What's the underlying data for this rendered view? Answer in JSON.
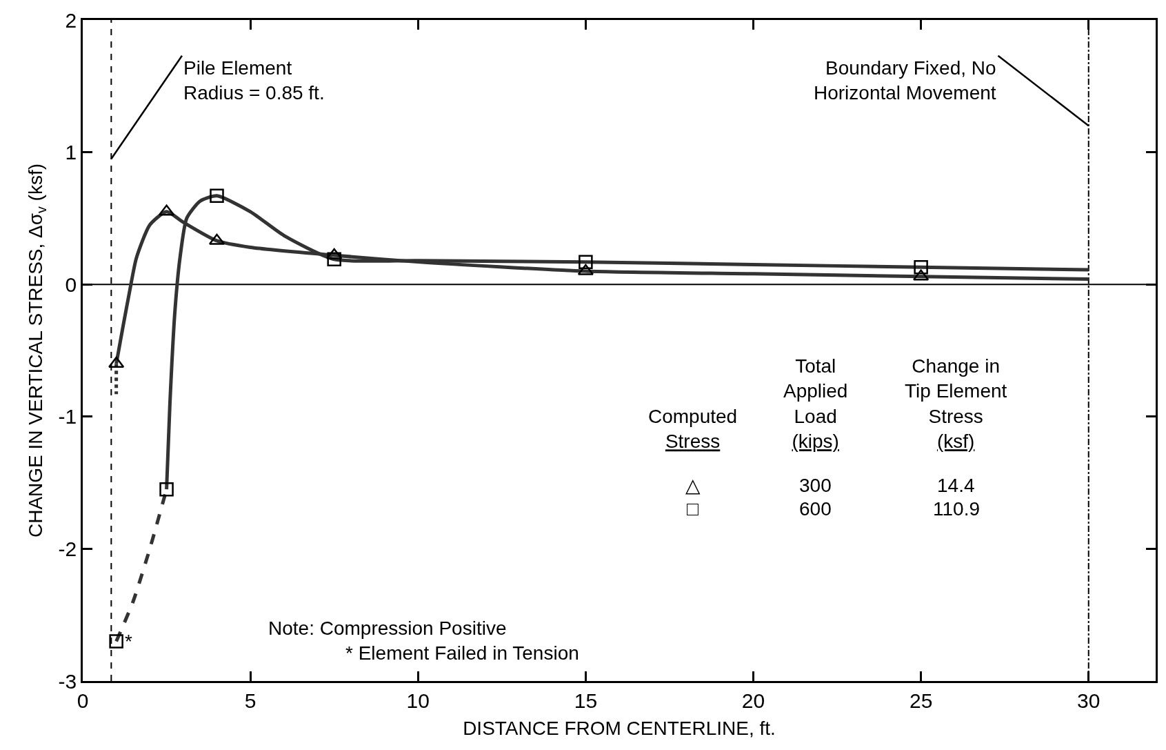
{
  "chart_data": {
    "type": "line",
    "xlabel": "DISTANCE FROM CENTERLINE, ft.",
    "ylabel": "CHANGE IN VERTICAL STRESS, Δσ$_{v}$ (ksf)",
    "xlim": [
      0,
      32
    ],
    "ylim": [
      -3,
      2
    ],
    "xticks": [
      0,
      5,
      10,
      15,
      20,
      25,
      30
    ],
    "yticks": [
      -3,
      -2,
      -1,
      0,
      1,
      2
    ],
    "grid": false,
    "series": [
      {
        "color": "#333333",
        "line_style": "solid",
        "marker": "none",
        "x": [
          1,
          1.2,
          1.4,
          1.6,
          2.0,
          2.5,
          3.0,
          4.0,
          5.0,
          7.5,
          10,
          15,
          20,
          25,
          30
        ],
        "values": [
          -0.6,
          -0.32,
          -0.05,
          0.2,
          0.45,
          0.55,
          0.47,
          0.33,
          0.28,
          0.22,
          0.17,
          0.1,
          0.08,
          0.06,
          0.04
        ]
      },
      {
        "color": "#333333",
        "line_style": "dotted",
        "marker": "none",
        "x": [
          1,
          1
        ],
        "values": [
          -0.6,
          -0.83
        ]
      },
      {
        "color": "#333333",
        "line_style": "solid",
        "marker": "none",
        "x": [
          2.5,
          2.6,
          2.75,
          2.9,
          3.1,
          3.5,
          4.0,
          5.0,
          6.0,
          7.5,
          10,
          15,
          20,
          25,
          30
        ],
        "values": [
          -1.55,
          -0.9,
          -0.2,
          0.2,
          0.5,
          0.63,
          0.67,
          0.55,
          0.37,
          0.19,
          0.18,
          0.17,
          0.15,
          0.13,
          0.11
        ]
      },
      {
        "color": "#333333",
        "line_style": "dashed",
        "marker": "none",
        "x": [
          1,
          1.5,
          2.0,
          2.5
        ],
        "values": [
          -2.7,
          -2.4,
          -2.0,
          -1.55
        ]
      },
      {
        "type": "scatter",
        "color": "#000000",
        "marker": "triangle",
        "x": [
          1,
          2.5,
          4,
          7.5,
          15,
          25
        ],
        "values": [
          -0.6,
          0.55,
          0.33,
          0.22,
          0.1,
          0.06
        ]
      },
      {
        "type": "scatter",
        "color": "#000000",
        "marker": "square",
        "x": [
          1,
          2.5,
          4,
          7.5,
          15,
          25
        ],
        "values": [
          -2.7,
          -1.55,
          0.67,
          0.19,
          0.17,
          0.13
        ]
      }
    ],
    "ref_lines": [
      {
        "axis": "x",
        "value": 0.85,
        "line_style": "dashed",
        "color": "#000000"
      },
      {
        "axis": "x",
        "value": 30,
        "line_style": "dashdot",
        "color": "#000000"
      },
      {
        "axis": "y",
        "value": 0,
        "line_style": "solid",
        "color": "#000000"
      }
    ],
    "annotations": [
      {
        "text": "Pile Element\nRadius = 0.85 ft.",
        "x": 0.85,
        "y": 0.95
      },
      {
        "text": "Boundary Fixed, No\nHorizontal Movement",
        "x": 30,
        "y": 1.2
      },
      "Note: Compression Positive",
      "* Element Failed in Tension",
      "Computed\nStress",
      "Total\nApplied\nLoad\n(kips)",
      "Change in\nTip Element\nStress\n(ksf)",
      "△",
      "300",
      "14.4",
      "□",
      "600",
      "110.9",
      {
        "text": "*",
        "x": 1,
        "y": -2.7
      }
    ]
  }
}
